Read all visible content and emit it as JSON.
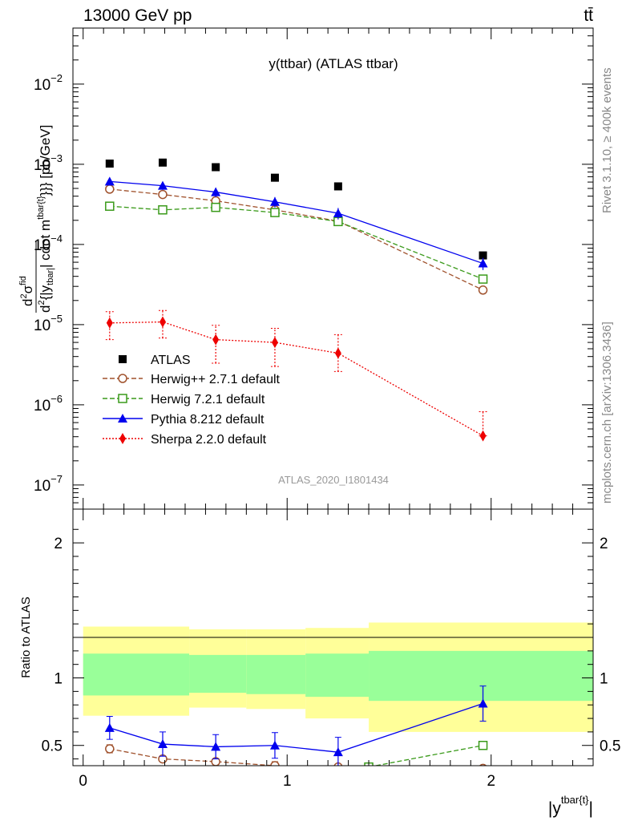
{
  "header": {
    "energy_label": "13000 GeV pp",
    "process_label": "tt̄"
  },
  "side_labels": {
    "rivet": "Rivet 3.1.10, ≥ 400k events",
    "mcplots": "mcplots.cern.ch [arXiv:1306.3436]"
  },
  "colors": {
    "atlas": "#000000",
    "herwigpp": "#a0522d",
    "herwig7": "#3a9a1a",
    "pythia": "#0000ee",
    "sherpa": "#ee0000",
    "band_inner": "#99ff99",
    "band_outer": "#ffff99"
  },
  "chart_data": [
    {
      "panel": "main",
      "type": "scatter",
      "title": "y(ttbar) (ATLAS ttbar)",
      "analysis_label": "ATLAS_2020_I1801434",
      "ylabel_parts": {
        "d": "d",
        "sup2": "2",
        "sigma": "σ",
        "fid": "fid",
        "bracket": "{|y",
        "sub_tbar": "tbar|",
        "sup_tbar": "tbar{t}",
        "rest": "}}} [pb/GeV]",
        "mid": "| cdot m"
      },
      "yscale": "log",
      "ylim": [
        5e-08,
        0.05
      ],
      "xlim": [
        -0.05,
        2.5
      ],
      "ytick_labels": [
        {
          "base": "10",
          "exp": "−7"
        },
        {
          "base": "10",
          "exp": "−6"
        },
        {
          "base": "10",
          "exp": "−5"
        },
        {
          "base": "10",
          "exp": "−4"
        },
        {
          "base": "10",
          "exp": "−3"
        },
        {
          "base": "10",
          "exp": "−2"
        }
      ],
      "series": [
        {
          "name": "ATLAS",
          "style": "data",
          "x": [
            0.13,
            0.39,
            0.65,
            0.94,
            1.25,
            1.96
          ],
          "y": [
            0.00102,
            0.00105,
            0.00092,
            0.00068,
            0.00053,
            7.3e-05
          ]
        },
        {
          "name": "Herwig++ 2.7.1 default",
          "style": "circle-dashed",
          "x": [
            0.13,
            0.39,
            0.65,
            0.94,
            1.25,
            1.96
          ],
          "y": [
            0.00049,
            0.00042,
            0.00035,
            0.00027,
            0.000195,
            2.7e-05
          ]
        },
        {
          "name": "Herwig 7.2.1 default",
          "style": "square-dashed",
          "x": [
            0.13,
            0.39,
            0.65,
            0.94,
            1.25,
            1.96
          ],
          "y": [
            0.0003,
            0.00027,
            0.00029,
            0.00025,
            0.000193,
            3.7e-05
          ]
        },
        {
          "name": "Pythia 8.212 default",
          "style": "triangle-solid",
          "x": [
            0.13,
            0.39,
            0.65,
            0.94,
            1.25,
            1.96
          ],
          "y": [
            0.00061,
            0.00054,
            0.00045,
            0.00034,
            0.000245,
            5.8e-05
          ],
          "err": [
            5e-05,
            6e-05,
            6e-05,
            5e-05,
            4e-05,
            1e-05
          ]
        },
        {
          "name": "Sherpa 2.2.0 default",
          "style": "diamond-dotted",
          "x": [
            0.13,
            0.39,
            0.65,
            0.94,
            1.25,
            1.96
          ],
          "y": [
            1.05e-05,
            1.08e-05,
            6.5e-06,
            6e-06,
            4.4e-06,
            4.1e-07
          ],
          "err_low": [
            6.5e-06,
            6.8e-06,
            3.3e-06,
            3e-06,
            2.6e-06,
            4.1e-07
          ],
          "err_high": [
            1.45e-05,
            1.5e-05,
            9.8e-06,
            9e-06,
            7.5e-06,
            8.2e-07
          ]
        }
      ]
    },
    {
      "panel": "ratio",
      "type": "line",
      "ylabel": "Ratio to ATLAS",
      "xlabel_main": "|y",
      "xlabel_sup": "tbar{t}",
      "xlabel_end": "|",
      "ylim": [
        0.35,
        2.25
      ],
      "xlim": [
        -0.05,
        2.5
      ],
      "yticks": [
        0.5,
        1,
        2
      ],
      "ytick_labels": [
        "0.5",
        "1",
        "2"
      ],
      "xticks": [
        0,
        1,
        2
      ],
      "xtick_labels": [
        "0",
        "1",
        "2"
      ],
      "bins": [
        {
          "lo": 0.0,
          "hi": 0.52,
          "inner": [
            0.87,
            1.18
          ],
          "outer": [
            0.72,
            1.38
          ]
        },
        {
          "lo": 0.52,
          "hi": 0.8,
          "inner": [
            0.89,
            1.17
          ],
          "outer": [
            0.78,
            1.36
          ]
        },
        {
          "lo": 0.8,
          "hi": 1.09,
          "inner": [
            0.88,
            1.17
          ],
          "outer": [
            0.77,
            1.36
          ]
        },
        {
          "lo": 1.09,
          "hi": 1.4,
          "inner": [
            0.86,
            1.18
          ],
          "outer": [
            0.7,
            1.37
          ]
        },
        {
          "lo": 1.4,
          "hi": 2.5,
          "inner": [
            0.83,
            1.2
          ],
          "outer": [
            0.6,
            1.41
          ]
        }
      ],
      "series": [
        {
          "name": "Herwig++ 2.7.1 default",
          "style": "circle-dashed",
          "x": [
            0.13,
            0.39,
            0.65,
            0.94,
            1.25,
            1.96
          ],
          "y": [
            0.475,
            0.4,
            0.38,
            0.35,
            0.34,
            0.33
          ],
          "err": [
            0.03,
            0,
            0,
            0.03,
            0,
            0
          ]
        },
        {
          "name": "Herwig 7.2.1 default",
          "style": "square-dashed",
          "x": [
            1.4,
            1.96
          ],
          "y": [
            0.34,
            0.5
          ],
          "err": [
            0,
            0.02
          ]
        },
        {
          "name": "Pythia 8.212 default",
          "style": "triangle-solid",
          "x": [
            0.13,
            0.39,
            0.65,
            0.94,
            1.25,
            1.96
          ],
          "y": [
            0.63,
            0.51,
            0.49,
            0.5,
            0.45,
            0.81
          ],
          "err": [
            0.085,
            0.09,
            0.09,
            0.095,
            0.11,
            0.13
          ]
        }
      ]
    }
  ]
}
